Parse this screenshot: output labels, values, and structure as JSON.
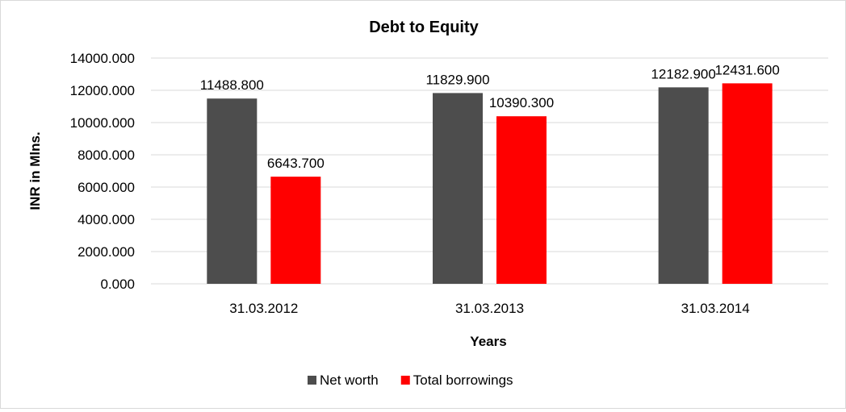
{
  "chart_data": {
    "type": "bar",
    "title": "Debt to Equity",
    "xlabel": "Years",
    "ylabel": "INR in Mlns.",
    "categories": [
      "31.03.2012",
      "31.03.2013",
      "31.03.2014"
    ],
    "series": [
      {
        "name": "Net worth",
        "color": "#4d4d4d",
        "values": [
          11488.8,
          11829.9,
          12182.9
        ],
        "labels": [
          "11488.800",
          "11829.900",
          "12182.900"
        ]
      },
      {
        "name": "Total borrowings",
        "color": "#ff0000",
        "values": [
          6643.7,
          10390.3,
          12431.6
        ],
        "labels": [
          "6643.700",
          "10390.300",
          "12431.600"
        ]
      }
    ],
    "ylim": [
      0,
      14000
    ],
    "yticks": [
      0,
      2000,
      4000,
      6000,
      8000,
      10000,
      12000,
      14000
    ],
    "ytick_labels": [
      "0.000",
      "2000.000",
      "4000.000",
      "6000.000",
      "8000.000",
      "10000.000",
      "12000.000",
      "14000.000"
    ],
    "grid": true,
    "gridline_color": "#d9d9d9",
    "legend_position": "bottom"
  }
}
